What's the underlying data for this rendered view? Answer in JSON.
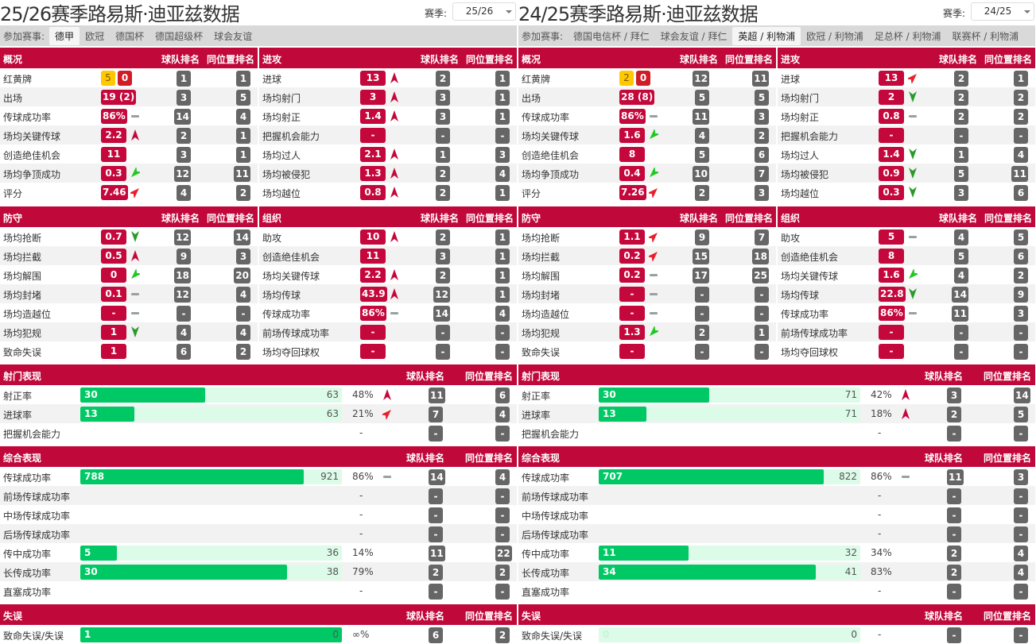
{
  "colors": {
    "header": "#c0083a",
    "value_badge": "#c5083c",
    "rank_badge": "#666666",
    "bar_fill": "#00c864",
    "bar_bg": "#dcfbe8",
    "up": "#c5083c",
    "up_right": "#e8202a",
    "down": "#2a9a2a",
    "down_left": "#22c822",
    "flat": "#99a0a0"
  },
  "labels": {
    "team_rank": "球队排名",
    "pos_rank": "同位置排名",
    "tabs_label": "参加赛事:",
    "season_label": "赛季:"
  },
  "panels": [
    {
      "title": "25/26赛季路易斯·迪亚兹数据",
      "season": "25/26",
      "tabs": [
        {
          "label": "德甲",
          "active": true
        },
        {
          "label": "欧冠"
        },
        {
          "label": "德国杯"
        },
        {
          "label": "德国超级杯"
        },
        {
          "label": "球会友谊"
        }
      ],
      "top_groups": [
        [
          {
            "title": "概况",
            "rows": [
              {
                "label": "红黄牌",
                "yellow": "5",
                "red": "0",
                "team": "1",
                "pos": "1"
              },
              {
                "label": "出场",
                "value": "19 (2)",
                "arrow": "",
                "team": "3",
                "pos": "5"
              },
              {
                "label": "传球成功率",
                "value": "86%",
                "arrow": "flat",
                "team": "14",
                "pos": "4"
              },
              {
                "label": "场均关键传球",
                "value": "2.2",
                "arrow": "up",
                "team": "2",
                "pos": "1"
              },
              {
                "label": "创造绝佳机会",
                "value": "11",
                "arrow": "",
                "team": "3",
                "pos": "1"
              },
              {
                "label": "场均争顶成功",
                "value": "0.3",
                "arrow": "down-left",
                "team": "12",
                "pos": "11"
              },
              {
                "label": "评分",
                "value": "7.46",
                "arrow": "up-right",
                "team": "4",
                "pos": "2"
              }
            ]
          },
          {
            "title": "进攻",
            "rows": [
              {
                "label": "进球",
                "value": "13",
                "arrow": "up",
                "team": "2",
                "pos": "1"
              },
              {
                "label": "场均射门",
                "value": "3",
                "arrow": "up",
                "team": "3",
                "pos": "1"
              },
              {
                "label": "场均射正",
                "value": "1.4",
                "arrow": "up",
                "team": "3",
                "pos": "1"
              },
              {
                "label": "把握机会能力",
                "value": "-",
                "arrow": "",
                "team": "-",
                "pos": "-"
              },
              {
                "label": "场均过人",
                "value": "2.1",
                "arrow": "up",
                "team": "1",
                "pos": "3"
              },
              {
                "label": "场均被侵犯",
                "value": "1.3",
                "arrow": "up",
                "team": "2",
                "pos": "4"
              },
              {
                "label": "场均越位",
                "value": "0.8",
                "arrow": "up",
                "team": "2",
                "pos": "1"
              }
            ]
          }
        ],
        [
          {
            "title": "防守",
            "rows": [
              {
                "label": "场均抢断",
                "value": "0.7",
                "arrow": "down",
                "team": "12",
                "pos": "14"
              },
              {
                "label": "场均拦截",
                "value": "0.5",
                "arrow": "up",
                "team": "9",
                "pos": "3"
              },
              {
                "label": "场均解围",
                "value": "0",
                "arrow": "down-left",
                "team": "18",
                "pos": "20"
              },
              {
                "label": "场均封堵",
                "value": "0.1",
                "arrow": "flat",
                "team": "12",
                "pos": "4"
              },
              {
                "label": "场均造越位",
                "value": "-",
                "arrow": "flat",
                "team": "-",
                "pos": "-"
              },
              {
                "label": "场均犯规",
                "value": "1",
                "arrow": "down",
                "team": "4",
                "pos": "4"
              },
              {
                "label": "致命失误",
                "value": "1",
                "arrow": "",
                "team": "6",
                "pos": "2"
              }
            ]
          },
          {
            "title": "组织",
            "rows": [
              {
                "label": "助攻",
                "value": "10",
                "arrow": "up",
                "team": "2",
                "pos": "1"
              },
              {
                "label": "创造绝佳机会",
                "value": "11",
                "arrow": "",
                "team": "3",
                "pos": "1"
              },
              {
                "label": "场均关键传球",
                "value": "2.2",
                "arrow": "up",
                "team": "2",
                "pos": "1"
              },
              {
                "label": "场均传球",
                "value": "43.9",
                "arrow": "up",
                "team": "12",
                "pos": "1"
              },
              {
                "label": "传球成功率",
                "value": "86%",
                "arrow": "flat",
                "team": "14",
                "pos": "4"
              },
              {
                "label": "前场传球成功率",
                "value": "-",
                "arrow": "",
                "team": "-",
                "pos": "-"
              },
              {
                "label": "场均夺回球权",
                "value": "-",
                "arrow": "",
                "team": "-",
                "pos": "-"
              }
            ]
          }
        ]
      ],
      "full_sections": [
        {
          "title": "射门表现",
          "rows": [
            {
              "label": "射正率",
              "value": 30,
              "total": 63,
              "pct": "48%",
              "arrow": "up",
              "team": "11",
              "pos": "6"
            },
            {
              "label": "进球率",
              "value": 13,
              "total": 63,
              "pct": "21%",
              "arrow": "up-right",
              "team": "7",
              "pos": "4"
            },
            {
              "label": "把握机会能力",
              "pct": "-",
              "arrow": "",
              "team": "-",
              "pos": "-"
            }
          ]
        },
        {
          "title": "综合表现",
          "rows": [
            {
              "label": "传球成功率",
              "value": 788,
              "total": 921,
              "pct": "86%",
              "arrow": "flat",
              "team": "14",
              "pos": "4"
            },
            {
              "label": "前场传球成功率",
              "pct": "-",
              "arrow": "",
              "team": "-",
              "pos": "-"
            },
            {
              "label": "中场传球成功率",
              "pct": "-",
              "arrow": "",
              "team": "-",
              "pos": "-"
            },
            {
              "label": "后场传球成功率",
              "pct": "-",
              "arrow": "",
              "team": "-",
              "pos": "-"
            },
            {
              "label": "传中成功率",
              "value": 5,
              "total": 36,
              "pct": "14%",
              "arrow": "",
              "team": "11",
              "pos": "22"
            },
            {
              "label": "长传成功率",
              "value": 30,
              "total": 38,
              "pct": "79%",
              "arrow": "",
              "team": "2",
              "pos": "2"
            },
            {
              "label": "直塞成功率",
              "pct": "-",
              "arrow": "",
              "team": "-",
              "pos": "-"
            }
          ]
        },
        {
          "title": "失误",
          "rows": [
            {
              "label": "致命失误/失误",
              "value": 1,
              "total": 0,
              "pct": "∞%",
              "arrow": "",
              "team": "6",
              "pos": "2"
            }
          ]
        }
      ]
    },
    {
      "title": "24/25赛季路易斯·迪亚兹数据",
      "season": "24/25",
      "tabs": [
        {
          "label": "德国电信杯 / 拜仁"
        },
        {
          "label": "球会友谊 / 拜仁"
        },
        {
          "label": "英超 / 利物浦",
          "active": true
        },
        {
          "label": "欧冠 / 利物浦"
        },
        {
          "label": "足总杯 / 利物浦"
        },
        {
          "label": "联赛杯 / 利物浦"
        }
      ],
      "top_groups": [
        [
          {
            "title": "概况",
            "rows": [
              {
                "label": "红黄牌",
                "yellow": "2",
                "red": "0",
                "team": "12",
                "pos": "11"
              },
              {
                "label": "出场",
                "value": "28 (8)",
                "arrow": "",
                "team": "5",
                "pos": "5"
              },
              {
                "label": "传球成功率",
                "value": "86%",
                "arrow": "flat",
                "team": "11",
                "pos": "3"
              },
              {
                "label": "场均关键传球",
                "value": "1.6",
                "arrow": "down-left",
                "team": "4",
                "pos": "2"
              },
              {
                "label": "创造绝佳机会",
                "value": "8",
                "arrow": "",
                "team": "5",
                "pos": "6"
              },
              {
                "label": "场均争顶成功",
                "value": "0.4",
                "arrow": "down-left",
                "team": "10",
                "pos": "7"
              },
              {
                "label": "评分",
                "value": "7.26",
                "arrow": "up-right",
                "team": "2",
                "pos": "3"
              }
            ]
          },
          {
            "title": "进攻",
            "rows": [
              {
                "label": "进球",
                "value": "13",
                "arrow": "up-right",
                "team": "2",
                "pos": "1"
              },
              {
                "label": "场均射门",
                "value": "2",
                "arrow": "down",
                "team": "2",
                "pos": "2"
              },
              {
                "label": "场均射正",
                "value": "0.8",
                "arrow": "flat",
                "team": "2",
                "pos": "2"
              },
              {
                "label": "把握机会能力",
                "value": "-",
                "arrow": "",
                "team": "-",
                "pos": "-"
              },
              {
                "label": "场均过人",
                "value": "1.4",
                "arrow": "down",
                "team": "1",
                "pos": "4"
              },
              {
                "label": "场均被侵犯",
                "value": "0.9",
                "arrow": "down",
                "team": "5",
                "pos": "11"
              },
              {
                "label": "场均越位",
                "value": "0.3",
                "arrow": "down",
                "team": "3",
                "pos": "6"
              }
            ]
          }
        ],
        [
          {
            "title": "防守",
            "rows": [
              {
                "label": "场均抢断",
                "value": "1.1",
                "arrow": "up-right",
                "team": "9",
                "pos": "7"
              },
              {
                "label": "场均拦截",
                "value": "0.2",
                "arrow": "up-right",
                "team": "15",
                "pos": "18"
              },
              {
                "label": "场均解围",
                "value": "0.2",
                "arrow": "flat",
                "team": "17",
                "pos": "25"
              },
              {
                "label": "场均封堵",
                "value": "-",
                "arrow": "flat",
                "team": "-",
                "pos": "-"
              },
              {
                "label": "场均造越位",
                "value": "-",
                "arrow": "flat",
                "team": "-",
                "pos": "-"
              },
              {
                "label": "场均犯规",
                "value": "1.3",
                "arrow": "down-left",
                "team": "2",
                "pos": "1"
              },
              {
                "label": "致命失误",
                "value": "-",
                "arrow": "",
                "team": "-",
                "pos": "-"
              }
            ]
          },
          {
            "title": "组织",
            "rows": [
              {
                "label": "助攻",
                "value": "5",
                "arrow": "flat",
                "team": "4",
                "pos": "5"
              },
              {
                "label": "创造绝佳机会",
                "value": "8",
                "arrow": "",
                "team": "5",
                "pos": "6"
              },
              {
                "label": "场均关键传球",
                "value": "1.6",
                "arrow": "down-left",
                "team": "4",
                "pos": "2"
              },
              {
                "label": "场均传球",
                "value": "22.8",
                "arrow": "down",
                "team": "14",
                "pos": "9"
              },
              {
                "label": "传球成功率",
                "value": "86%",
                "arrow": "flat",
                "team": "11",
                "pos": "3"
              },
              {
                "label": "前场传球成功率",
                "value": "-",
                "arrow": "",
                "team": "-",
                "pos": "-"
              },
              {
                "label": "场均夺回球权",
                "value": "-",
                "arrow": "",
                "team": "-",
                "pos": "-"
              }
            ]
          }
        ]
      ],
      "full_sections": [
        {
          "title": "射门表现",
          "rows": [
            {
              "label": "射正率",
              "value": 30,
              "total": 71,
              "pct": "42%",
              "arrow": "up",
              "team": "3",
              "pos": "14"
            },
            {
              "label": "进球率",
              "value": 13,
              "total": 71,
              "pct": "18%",
              "arrow": "up",
              "team": "2",
              "pos": "5"
            },
            {
              "label": "把握机会能力",
              "pct": "-",
              "arrow": "",
              "team": "-",
              "pos": "-"
            }
          ]
        },
        {
          "title": "综合表现",
          "rows": [
            {
              "label": "传球成功率",
              "value": 707,
              "total": 822,
              "pct": "86%",
              "arrow": "flat",
              "team": "11",
              "pos": "3"
            },
            {
              "label": "前场传球成功率",
              "pct": "-",
              "arrow": "",
              "team": "-",
              "pos": "-"
            },
            {
              "label": "中场传球成功率",
              "pct": "-",
              "arrow": "",
              "team": "-",
              "pos": "-"
            },
            {
              "label": "后场传球成功率",
              "pct": "-",
              "arrow": "",
              "team": "-",
              "pos": "-"
            },
            {
              "label": "传中成功率",
              "value": 11,
              "total": 32,
              "pct": "34%",
              "arrow": "",
              "team": "2",
              "pos": "4"
            },
            {
              "label": "长传成功率",
              "value": 34,
              "total": 41,
              "pct": "83%",
              "arrow": "",
              "team": "2",
              "pos": "4"
            },
            {
              "label": "直塞成功率",
              "pct": "-",
              "arrow": "",
              "team": "-",
              "pos": "-"
            }
          ]
        },
        {
          "title": "失误",
          "rows": [
            {
              "label": "致命失误/失误",
              "value": 0,
              "total": 0,
              "pct": "-",
              "arrow": "",
              "team": "-",
              "pos": "-"
            }
          ]
        }
      ]
    }
  ]
}
